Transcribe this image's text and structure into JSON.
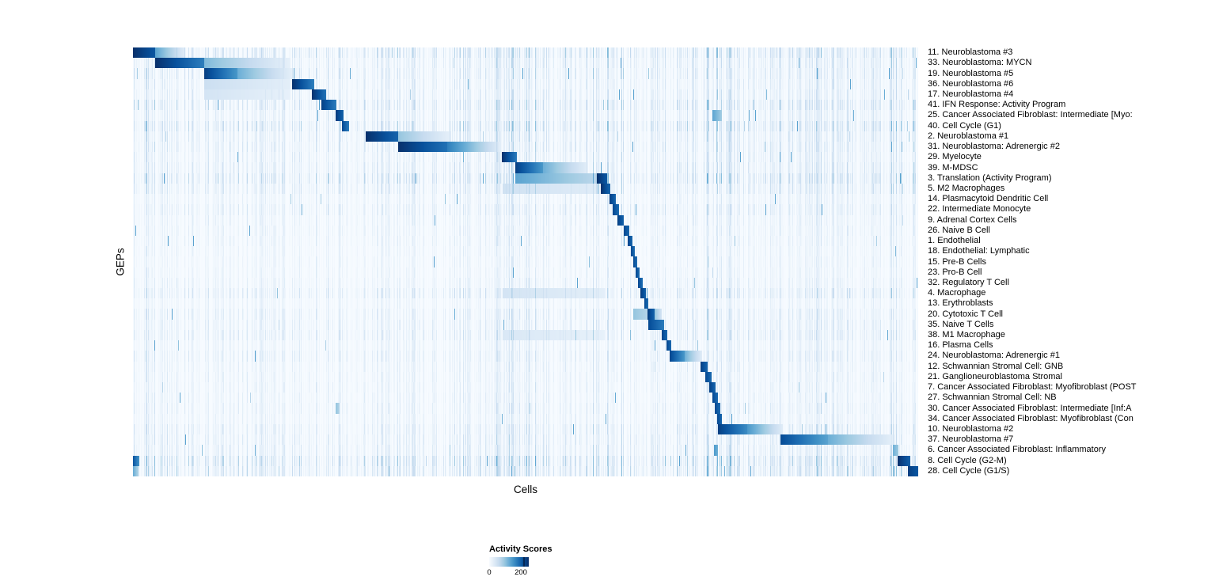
{
  "chart_data": {
    "type": "heatmap",
    "title": "",
    "xlabel": "Cells",
    "ylabel": "GEPs",
    "legend": {
      "title": "Activity Scores",
      "min": 0,
      "max": 200,
      "min_label": "0",
      "max_label": "200"
    },
    "colormap_name": "Blues",
    "colormap": [
      "#f7fbff",
      "#deebf7",
      "#c6dbef",
      "#9ecae1",
      "#6baed6",
      "#4292c6",
      "#2171b5",
      "#08519c",
      "#08306b"
    ],
    "n_rows": 41,
    "column_bands": [
      [
        0.0,
        0.03,
        1.3
      ],
      [
        0.225,
        0.27,
        1.4
      ],
      [
        0.46,
        0.52,
        1.5
      ],
      [
        0.575,
        0.625,
        1.6
      ],
      [
        0.73,
        0.785,
        1.6
      ],
      [
        0.84,
        0.92,
        1.2
      ],
      [
        0.955,
        1.0,
        1.9
      ]
    ],
    "rows": [
      {
        "label": "11. Neuroblastoma #3",
        "segments": [
          [
            0.0,
            0.028,
            1.0,
            0.85
          ],
          [
            0.028,
            0.065,
            0.55,
            0.12
          ]
        ],
        "noise": 0.5
      },
      {
        "label": "33. Neuroblastoma: MYCN",
        "segments": [
          [
            0.028,
            0.09,
            1.0,
            0.7
          ],
          [
            0.09,
            0.2,
            0.45,
            0.08
          ]
        ],
        "noise": 0.35
      },
      {
        "label": "19. Neuroblastoma #5",
        "segments": [
          [
            0.09,
            0.133,
            0.95,
            0.6
          ],
          [
            0.133,
            0.204,
            0.5,
            0.08
          ]
        ],
        "noise": 0.35
      },
      {
        "label": "36. Neuroblastoma #6",
        "segments": [
          [
            0.09,
            0.2,
            0.22,
            0.1
          ],
          [
            0.202,
            0.23,
            1.0,
            0.7
          ]
        ],
        "noise": 0.3
      },
      {
        "label": "17. Neuroblastoma #4",
        "segments": [
          [
            0.09,
            0.2,
            0.18,
            0.08
          ],
          [
            0.227,
            0.245,
            1.0,
            0.75
          ]
        ],
        "noise": 0.3
      },
      {
        "label": "41. IFN Response: Activity Program",
        "segments": [
          [
            0.239,
            0.259,
            0.95,
            0.7
          ]
        ],
        "noise": 0.45
      },
      {
        "label": "25. Cancer Associated Fibroblast: Intermediate [Myo:",
        "segments": [
          [
            0.258,
            0.268,
            0.95,
            0.8
          ],
          [
            0.737,
            0.75,
            0.55,
            0.35
          ]
        ],
        "noise": 0.3
      },
      {
        "label": "40. Cell Cycle (G1)",
        "segments": [
          [
            0.266,
            0.275,
            0.9,
            0.7
          ]
        ],
        "noise": 0.5
      },
      {
        "label": "2. Neuroblastoma #1",
        "segments": [
          [
            0.296,
            0.337,
            1.0,
            0.8
          ],
          [
            0.337,
            0.405,
            0.4,
            0.08
          ]
        ],
        "noise": 0.35
      },
      {
        "label": "31. Neuroblastoma: Adrenergic #2",
        "segments": [
          [
            0.337,
            0.4,
            1.0,
            0.75
          ],
          [
            0.4,
            0.466,
            0.7,
            0.12
          ]
        ],
        "noise": 0.35
      },
      {
        "label": "29. Myelocyte",
        "segments": [
          [
            0.469,
            0.488,
            1.0,
            0.72
          ]
        ],
        "noise": 0.3
      },
      {
        "label": "39. M-MDSC",
        "segments": [
          [
            0.486,
            0.522,
            0.95,
            0.6
          ],
          [
            0.522,
            0.576,
            0.5,
            0.12
          ]
        ],
        "noise": 0.35
      },
      {
        "label": "3. Translation (Activity Program)",
        "segments": [
          [
            0.486,
            0.59,
            0.55,
            0.28
          ],
          [
            0.59,
            0.603,
            1.0,
            0.85
          ]
        ],
        "noise": 0.5
      },
      {
        "label": "5. M2 Macrophages",
        "segments": [
          [
            0.47,
            0.59,
            0.2,
            0.12
          ],
          [
            0.595,
            0.607,
            1.0,
            0.8
          ]
        ],
        "noise": 0.35
      },
      {
        "label": "14. Plasmacytoid Dendritic Cell",
        "segments": [
          [
            0.606,
            0.614,
            0.95,
            0.8
          ]
        ],
        "noise": 0.22
      },
      {
        "label": "22. Intermediate Monocyte",
        "segments": [
          [
            0.61,
            0.618,
            0.92,
            0.78
          ]
        ],
        "noise": 0.3
      },
      {
        "label": "9. Adrenal Cortex Cells",
        "segments": [
          [
            0.616,
            0.625,
            0.95,
            0.8
          ]
        ],
        "noise": 0.22
      },
      {
        "label": "26. Naive B Cell",
        "segments": [
          [
            0.624,
            0.632,
            0.92,
            0.78
          ]
        ],
        "noise": 0.22
      },
      {
        "label": "1. Endothelial",
        "segments": [
          [
            0.63,
            0.636,
            0.92,
            0.78
          ]
        ],
        "noise": 0.2
      },
      {
        "label": "18. Endothelial: Lymphatic",
        "segments": [
          [
            0.634,
            0.639,
            0.9,
            0.75
          ]
        ],
        "noise": 0.18
      },
      {
        "label": "15. Pre-B Cells",
        "segments": [
          [
            0.637,
            0.642,
            0.9,
            0.75
          ]
        ],
        "noise": 0.18
      },
      {
        "label": "23. Pro-B Cell",
        "segments": [
          [
            0.64,
            0.645,
            0.9,
            0.75
          ]
        ],
        "noise": 0.18
      },
      {
        "label": "32. Regulatory T Cell",
        "segments": [
          [
            0.643,
            0.649,
            0.9,
            0.75
          ]
        ],
        "noise": 0.22
      },
      {
        "label": "4. Macrophage",
        "segments": [
          [
            0.47,
            0.6,
            0.18,
            0.1
          ],
          [
            0.646,
            0.653,
            0.95,
            0.8
          ]
        ],
        "noise": 0.35
      },
      {
        "label": "13. Erythroblasts",
        "segments": [
          [
            0.651,
            0.656,
            0.9,
            0.75
          ]
        ],
        "noise": 0.18
      },
      {
        "label": "20. Cytotoxic T Cell",
        "segments": [
          [
            0.637,
            0.655,
            0.4,
            0.3
          ],
          [
            0.655,
            0.664,
            0.95,
            0.8
          ],
          [
            0.664,
            0.673,
            0.4,
            0.18
          ]
        ],
        "noise": 0.28
      },
      {
        "label": "35. Naive T Cells",
        "segments": [
          [
            0.656,
            0.676,
            0.9,
            0.7
          ]
        ],
        "noise": 0.28
      },
      {
        "label": "38. M1 Macrophage",
        "segments": [
          [
            0.47,
            0.6,
            0.15,
            0.08
          ],
          [
            0.673,
            0.68,
            0.92,
            0.78
          ]
        ],
        "noise": 0.32
      },
      {
        "label": "16. Plasma Cells",
        "segments": [
          [
            0.679,
            0.685,
            0.92,
            0.78
          ]
        ],
        "noise": 0.22
      },
      {
        "label": "24. Neuroblastoma: Adrenergic #1",
        "segments": [
          [
            0.683,
            0.702,
            0.92,
            0.6
          ],
          [
            0.702,
            0.724,
            0.5,
            0.12
          ]
        ],
        "noise": 0.28
      },
      {
        "label": "12. Schwannian Stromal Cell: GNB",
        "segments": [
          [
            0.722,
            0.731,
            0.95,
            0.8
          ]
        ],
        "noise": 0.22
      },
      {
        "label": "21. Ganglioneuroblastoma Stromal",
        "segments": [
          [
            0.728,
            0.736,
            0.92,
            0.78
          ]
        ],
        "noise": 0.22
      },
      {
        "label": "7. Cancer Associated Fibroblast: Myofibroblast (POST",
        "segments": [
          [
            0.733,
            0.741,
            0.95,
            0.8
          ]
        ],
        "noise": 0.22
      },
      {
        "label": "27. Schwannian Stromal Cell: NB",
        "segments": [
          [
            0.737,
            0.744,
            0.92,
            0.78
          ]
        ],
        "noise": 0.22
      },
      {
        "label": "30. Cancer Associated Fibroblast: Intermediate [Inf:A",
        "segments": [
          [
            0.258,
            0.263,
            0.4,
            0.3
          ],
          [
            0.74,
            0.747,
            0.92,
            0.78
          ]
        ],
        "noise": 0.25
      },
      {
        "label": "34. Cancer Associated Fibroblast: Myofibroblast (Con",
        "segments": [
          [
            0.743,
            0.75,
            0.92,
            0.78
          ]
        ],
        "noise": 0.22
      },
      {
        "label": "10. Neuroblastoma #2",
        "segments": [
          [
            0.744,
            0.782,
            0.95,
            0.65
          ],
          [
            0.782,
            0.827,
            0.6,
            0.12
          ]
        ],
        "noise": 0.32
      },
      {
        "label": "37. Neuroblastoma #7",
        "segments": [
          [
            0.824,
            0.885,
            0.9,
            0.55
          ],
          [
            0.885,
            0.97,
            0.5,
            0.08
          ]
        ],
        "noise": 0.32
      },
      {
        "label": "6. Cancer Associated Fibroblast: Inflammatory",
        "segments": [
          [
            0.739,
            0.744,
            0.6,
            0.5
          ],
          [
            0.967,
            0.974,
            0.5,
            0.38
          ]
        ],
        "noise": 0.32
      },
      {
        "label": "8. Cell Cycle (G2-M)",
        "segments": [
          [
            0.0,
            0.008,
            0.85,
            0.6
          ],
          [
            0.973,
            0.989,
            1.0,
            0.82
          ]
        ],
        "noise": 0.55
      },
      {
        "label": "28. Cell Cycle (G1/S)",
        "segments": [
          [
            0.0,
            0.007,
            0.5,
            0.3
          ],
          [
            0.986,
            1.0,
            0.95,
            0.85
          ]
        ],
        "noise": 0.5
      }
    ]
  }
}
